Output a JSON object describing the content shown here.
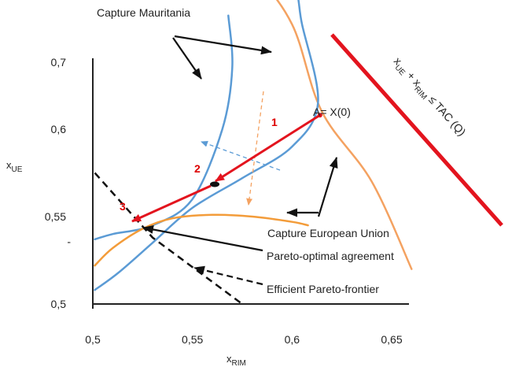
{
  "chart_data": {
    "type": "line",
    "title": "",
    "xlabel_main": "x",
    "xlabel_sub": "RIM",
    "ylabel_main": "x",
    "ylabel_sub": "UE",
    "xlim": [
      0.5,
      0.67
    ],
    "ylim": [
      0.5,
      0.74
    ],
    "x_ticks": [
      {
        "value": 0.5,
        "label": "0,5"
      },
      {
        "value": 0.55,
        "label": "0,55"
      },
      {
        "value": 0.6,
        "label": "0,6"
      },
      {
        "value": 0.65,
        "label": "0,65"
      }
    ],
    "y_ticks": [
      {
        "value": 0.5,
        "label": "0,5"
      },
      {
        "value": 0.55,
        "label": "0,55"
      },
      {
        "value": 0.6,
        "label": "0,6"
      },
      {
        "value": 0.7,
        "label": "0,7"
      }
    ],
    "extra_y_tick": {
      "value": 0.535,
      "label": "-"
    },
    "grid": false,
    "colors": {
      "mauritania": "#5b9bd5",
      "eu": "#f4a261",
      "eu_dark": "#f39c3a",
      "tac": "#e3141e",
      "path": "#e3141e",
      "frontier": "#111111",
      "annotation": "#111111"
    },
    "series": [
      {
        "key": "mauritania_outer",
        "x": [
          0.501,
          0.513,
          0.53,
          0.55,
          0.575,
          0.6,
          0.613,
          0.605,
          0.6,
          0.58,
          0.55,
          0.53,
          0.52
        ],
        "y": [
          0.508,
          0.518,
          0.535,
          0.555,
          0.572,
          0.59,
          0.615,
          0.66,
          0.685,
          0.71,
          0.73,
          0.74,
          0.744
        ]
      },
      {
        "key": "mauritania_inner",
        "x": [
          0.501,
          0.51,
          0.53,
          0.55,
          0.565,
          0.57,
          0.568
        ],
        "y": [
          0.537,
          0.54,
          0.545,
          0.56,
          0.6,
          0.635,
          0.665
        ]
      },
      {
        "key": "eu_light",
        "x": [
          0.501,
          0.56,
          0.58,
          0.6,
          0.615,
          0.64,
          0.66
        ],
        "y": [
          0.705,
          0.705,
          0.69,
          0.66,
          0.61,
          0.57,
          0.52
        ]
      },
      {
        "key": "eu_dark",
        "x": [
          0.501,
          0.51,
          0.525,
          0.54,
          0.56,
          0.58,
          0.6,
          0.608
        ],
        "y": [
          0.522,
          0.532,
          0.543,
          0.549,
          0.551,
          0.55,
          0.547,
          0.545
        ]
      },
      {
        "key": "efficient_frontier",
        "x": [
          0.501,
          0.53,
          0.575
        ],
        "y": [
          0.575,
          0.538,
          0.5
        ]
      },
      {
        "key": "tac_line",
        "x": [
          0.635,
          0.665
        ],
        "y": [
          0.733,
          0.61
        ]
      },
      {
        "key": "negotiation_path",
        "x": [
          0.614,
          0.57,
          0.53
        ],
        "y": [
          0.608,
          0.57,
          0.54
        ]
      }
    ],
    "points": [
      {
        "key": "A",
        "x": 0.614,
        "y": 0.608,
        "label": "A= X(0)"
      },
      {
        "key": "step2",
        "x": 0.573,
        "y": 0.564
      },
      {
        "key": "step3",
        "x": 0.53,
        "y": 0.54
      }
    ],
    "step_labels": [
      "1",
      "2",
      "3"
    ],
    "annotations": {
      "capture_mauritania": "Capture Mauritania",
      "capture_eu": "Capture European Union",
      "pareto_agreement": "Pareto-optimal agreement",
      "efficient_frontier": "Efficient Pareto-frontier",
      "tac_main": "x",
      "tac_sub1": "UE",
      "tac_mid": " + x",
      "tac_sub2": "RIM",
      "tac_end": " ≤ TAC (Q)"
    }
  }
}
